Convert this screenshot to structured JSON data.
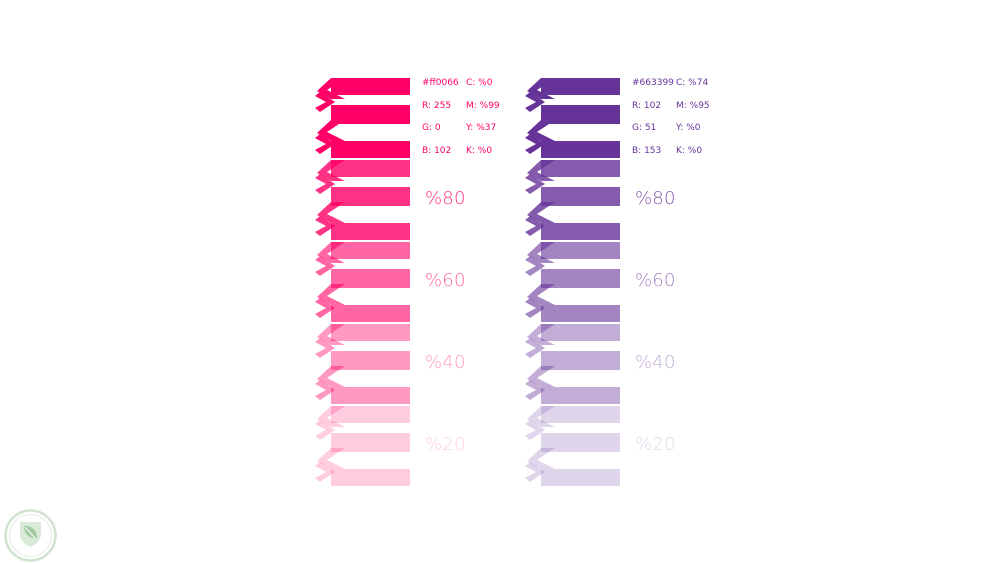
{
  "columns": [
    {
      "id": "pink",
      "color": "#ff0066",
      "info": {
        "hex": "#ff0066",
        "r": "R: 255",
        "g": "G: 0",
        "b": "B: 102",
        "c": "C: %0",
        "m": "M: %99",
        "y": "Y: %37",
        "k": "K: %0"
      },
      "tints": [
        {
          "opacity": 1.0,
          "label": ""
        },
        {
          "opacity": 0.8,
          "label": "%80"
        },
        {
          "opacity": 0.6,
          "label": "%60"
        },
        {
          "opacity": 0.4,
          "label": "%40"
        },
        {
          "opacity": 0.2,
          "label": "%20"
        }
      ]
    },
    {
      "id": "purple",
      "color": "#663399",
      "info": {
        "hex": "#663399",
        "r": "R: 102",
        "g": "G: 51",
        "b": "B: 153",
        "c": "C: %74",
        "m": "M: %95",
        "y": "Y: %0",
        "k": "K: %0"
      },
      "tints": [
        {
          "opacity": 1.0,
          "label": ""
        },
        {
          "opacity": 0.8,
          "label": "%80"
        },
        {
          "opacity": 0.6,
          "label": "%60"
        },
        {
          "opacity": 0.4,
          "label": "%40"
        },
        {
          "opacity": 0.2,
          "label": "%20"
        }
      ]
    }
  ],
  "logo": {
    "icon": "leaf-shield-logo",
    "color": "#7fb77f"
  }
}
